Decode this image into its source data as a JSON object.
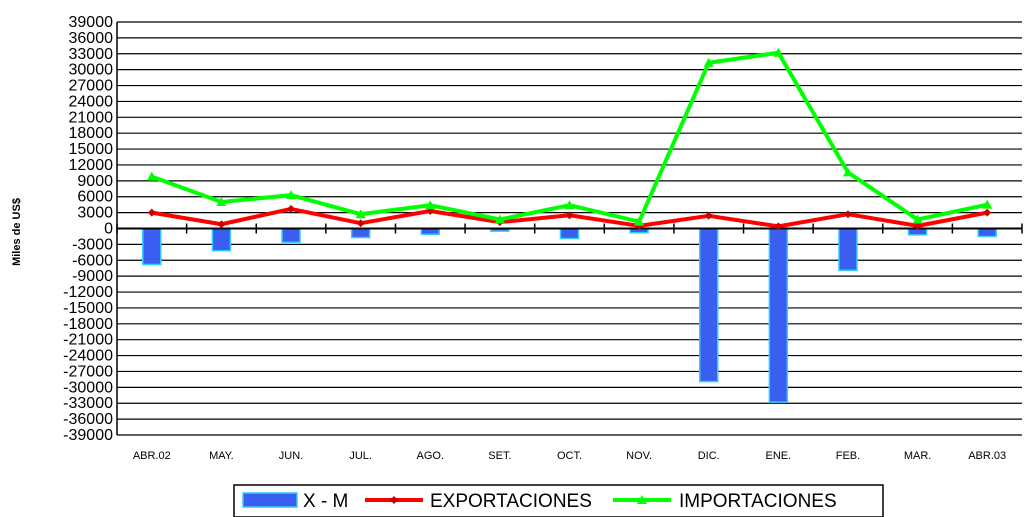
{
  "chart_data": {
    "type": "bar",
    "categories": [
      "ABR.02",
      "MAY.",
      "JUN.",
      "JUL.",
      "AGO.",
      "SET.",
      "OCT.",
      "NOV.",
      "DIC.",
      "ENE.",
      "FEB.",
      "MAR.",
      "ABR.03"
    ],
    "ylabel": "Miles de US$",
    "ylim": [
      -39000,
      39000
    ],
    "ytick_step": 3000,
    "grid": true,
    "legend_position": "bottom",
    "series": [
      {
        "name": "X - M",
        "type": "bar",
        "color": "#3a5ff0",
        "values": [
          -6800,
          -4200,
          -2600,
          -1700,
          -1100,
          -500,
          -1900,
          -800,
          -28900,
          -32800,
          -7900,
          -1200,
          -1500
        ]
      },
      {
        "name": "EXPORTACIONES",
        "type": "line",
        "color": "#ff0000",
        "values": [
          3000,
          800,
          3700,
          1000,
          3300,
          1200,
          2500,
          500,
          2400,
          400,
          2700,
          500,
          3000
        ]
      },
      {
        "name": "IMPORTACIONES",
        "type": "line",
        "color": "#00ff00",
        "values": [
          9800,
          5000,
          6300,
          2700,
          4400,
          1700,
          4400,
          1300,
          31300,
          33200,
          10600,
          1700,
          4500
        ]
      }
    ]
  }
}
